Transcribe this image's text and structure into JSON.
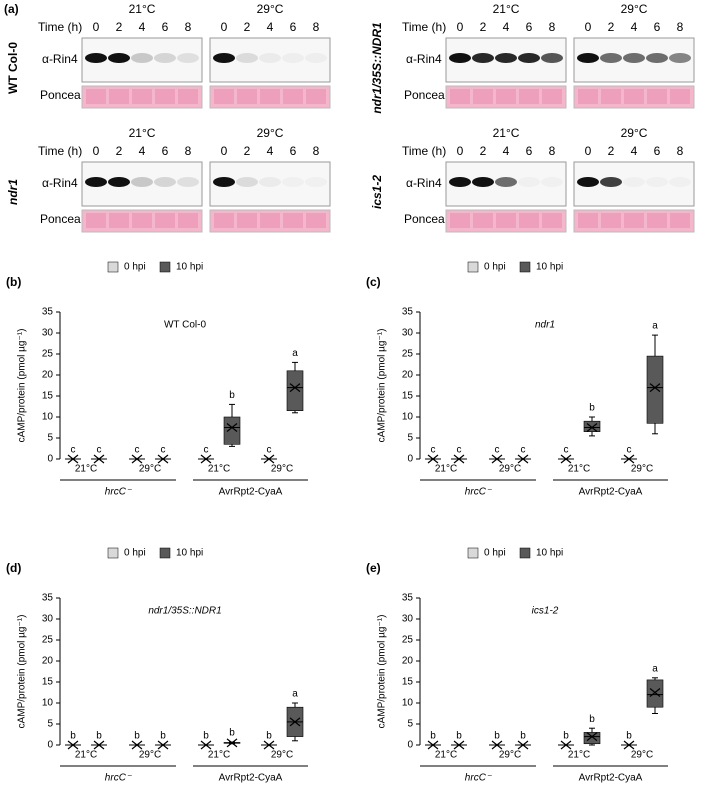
{
  "panel_label": "(a)",
  "blots": [
    {
      "genotype": "WT Col-0",
      "temps": [
        "21°C",
        "29°C"
      ],
      "time_label": "Time (h)",
      "times": [
        "0",
        "2",
        "4",
        "6",
        "8"
      ],
      "rows": [
        "α-Rin4",
        "Ponceau"
      ]
    },
    {
      "genotype": "ndr1/35S::NDR1",
      "temps": [
        "21°C",
        "29°C"
      ],
      "time_label": "Time (h)",
      "times": [
        "0",
        "2",
        "4",
        "6",
        "8"
      ],
      "rows": [
        "α-Rin4",
        "Ponceau"
      ]
    },
    {
      "genotype": "ndr1",
      "temps": [
        "21°C",
        "29°C"
      ],
      "time_label": "Time (h)",
      "times": [
        "0",
        "2",
        "4",
        "6",
        "8"
      ],
      "rows": [
        "α-Rin4",
        "Ponceau"
      ]
    },
    {
      "genotype": "ics1-2",
      "temps": [
        "21°C",
        "29°C"
      ],
      "time_label": "Time (h)",
      "times": [
        "0",
        "2",
        "4",
        "6",
        "8"
      ],
      "rows": [
        "α-Rin4",
        "Ponceau"
      ]
    }
  ],
  "chart_data": [
    {
      "type": "box",
      "panel_label": "(b)",
      "title": "WT Col-0",
      "title_italic": false,
      "ylabel": "cAMP/protein (pmol µg⁻¹)",
      "ylim": [
        0,
        35
      ],
      "yticks": [
        0,
        5,
        10,
        15,
        20,
        25,
        30,
        35
      ],
      "categories": [
        "21°C",
        "29°C",
        "21°C",
        "29°C"
      ],
      "groups": [
        "hrcC⁻",
        "AvrRpt2-CyaA"
      ],
      "series": [
        {
          "name": "0 hpi",
          "color": "#d9d9d9",
          "min": [
            0,
            0,
            0,
            0
          ],
          "q1": [
            0,
            0,
            0,
            0
          ],
          "median": [
            0,
            0,
            0,
            0
          ],
          "q3": [
            0,
            0,
            0,
            0
          ],
          "max": [
            0,
            0,
            0,
            0
          ],
          "mean": [
            0,
            0,
            0,
            0
          ],
          "letters": [
            "c",
            "c",
            "c",
            "c"
          ]
        },
        {
          "name": "10 hpi",
          "color": "#595959",
          "min": [
            0,
            0,
            3,
            11
          ],
          "q1": [
            0,
            0,
            3.5,
            11.5
          ],
          "median": [
            0,
            0,
            7.5,
            17
          ],
          "q3": [
            0,
            0,
            10,
            21
          ],
          "max": [
            0,
            0,
            13,
            23
          ],
          "mean": [
            0,
            0,
            7.5,
            17
          ],
          "letters": [
            "c",
            "c",
            "b",
            "a"
          ]
        }
      ]
    },
    {
      "type": "box",
      "panel_label": "(c)",
      "title": "ndr1",
      "title_italic": true,
      "ylabel": "cAMP/protein (pmol µg⁻¹)",
      "ylim": [
        0,
        35
      ],
      "yticks": [
        0,
        5,
        10,
        15,
        20,
        25,
        30,
        35
      ],
      "categories": [
        "21°C",
        "29°C",
        "21°C",
        "29°C"
      ],
      "groups": [
        "hrcC⁻",
        "AvrRpt2-CyaA"
      ],
      "series": [
        {
          "name": "0 hpi",
          "color": "#d9d9d9",
          "min": [
            0,
            0,
            0,
            0
          ],
          "q1": [
            0,
            0,
            0,
            0
          ],
          "median": [
            0,
            0,
            0,
            0
          ],
          "q3": [
            0,
            0,
            0,
            0
          ],
          "max": [
            0,
            0,
            0,
            0
          ],
          "mean": [
            0,
            0,
            0,
            0
          ],
          "letters": [
            "c",
            "c",
            "c",
            "c"
          ]
        },
        {
          "name": "10 hpi",
          "color": "#595959",
          "min": [
            0,
            0,
            5.5,
            6
          ],
          "q1": [
            0,
            0,
            6.5,
            8.5
          ],
          "median": [
            0,
            0,
            7.5,
            17
          ],
          "q3": [
            0,
            0,
            9,
            24.5
          ],
          "max": [
            0,
            0,
            10,
            29.5
          ],
          "mean": [
            0,
            0,
            7.5,
            17
          ],
          "letters": [
            "c",
            "c",
            "b",
            "a"
          ]
        }
      ]
    },
    {
      "type": "box",
      "panel_label": "(d)",
      "title": "ndr1/35S::NDR1",
      "title_italic": true,
      "ylabel": "cAMP/protein (pmol µg⁻¹)",
      "ylim": [
        0,
        35
      ],
      "yticks": [
        0,
        5,
        10,
        15,
        20,
        25,
        30,
        35
      ],
      "categories": [
        "21°C",
        "29°C",
        "21°C",
        "29°C"
      ],
      "groups": [
        "hrcC⁻",
        "AvrRpt2-CyaA"
      ],
      "series": [
        {
          "name": "0 hpi",
          "color": "#d9d9d9",
          "min": [
            0,
            0,
            0,
            0
          ],
          "q1": [
            0,
            0,
            0,
            0
          ],
          "median": [
            0,
            0,
            0,
            0
          ],
          "q3": [
            0,
            0,
            0,
            0
          ],
          "max": [
            0,
            0,
            0,
            0
          ],
          "mean": [
            0,
            0,
            0,
            0
          ],
          "letters": [
            "b",
            "b",
            "b",
            "b"
          ]
        },
        {
          "name": "10 hpi",
          "color": "#595959",
          "min": [
            0,
            0,
            0.3,
            1
          ],
          "q1": [
            0,
            0,
            0.4,
            2
          ],
          "median": [
            0,
            0,
            0.5,
            5.5
          ],
          "q3": [
            0,
            0,
            0.6,
            9
          ],
          "max": [
            0,
            0,
            0.7,
            10
          ],
          "mean": [
            0,
            0,
            0.5,
            5.5
          ],
          "letters": [
            "b",
            "b",
            "b",
            "a"
          ]
        }
      ]
    },
    {
      "type": "box",
      "panel_label": "(e)",
      "title": "ics1-2",
      "title_italic": true,
      "ylabel": "cAMP/protein (pmol µg⁻¹)",
      "ylim": [
        0,
        35
      ],
      "yticks": [
        0,
        5,
        10,
        15,
        20,
        25,
        30,
        35
      ],
      "categories": [
        "21°C",
        "29°C",
        "21°C",
        "29°C"
      ],
      "groups": [
        "hrcC⁻",
        "AvrRpt2-CyaA"
      ],
      "series": [
        {
          "name": "0 hpi",
          "color": "#d9d9d9",
          "min": [
            0,
            0,
            0,
            0
          ],
          "q1": [
            0,
            0,
            0,
            0
          ],
          "median": [
            0,
            0,
            0,
            0
          ],
          "q3": [
            0,
            0,
            0,
            0
          ],
          "max": [
            0,
            0,
            0,
            0
          ],
          "mean": [
            0,
            0,
            0,
            0
          ],
          "letters": [
            "b",
            "b",
            "b",
            "b"
          ]
        },
        {
          "name": "10 hpi",
          "color": "#595959",
          "min": [
            0,
            0,
            0,
            7.5
          ],
          "q1": [
            0,
            0,
            0.3,
            9
          ],
          "median": [
            0,
            0,
            2,
            12
          ],
          "q3": [
            0,
            0,
            3,
            15.5
          ],
          "max": [
            0,
            0,
            4,
            16
          ],
          "mean": [
            0,
            0,
            2,
            12.5
          ],
          "letters": [
            "b",
            "b",
            "b",
            "a"
          ]
        }
      ]
    }
  ]
}
